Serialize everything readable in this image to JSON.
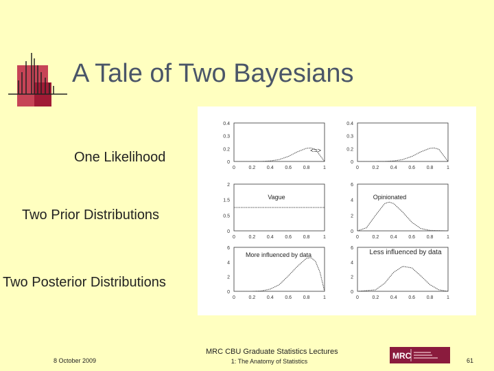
{
  "slide": {
    "title": "A Tale of Two Bayesians",
    "labels": {
      "likelihood": "One Likelihood",
      "priors": "Two Prior Distributions",
      "posteriors": "Two Posterior Distributions"
    }
  },
  "footer": {
    "date": "8 October 2009",
    "line1": "MRC CBU Graduate Statistics Lectures",
    "line2": "1: The Anatomy of Statistics",
    "page": "61",
    "logo_text": "MRC"
  },
  "colors": {
    "background": "#FFFFC0",
    "title": "#4a5568",
    "accent": "#c0304a",
    "logo": "#8a1b3d"
  },
  "chart_data": [
    {
      "type": "line",
      "panel": "likelihood-left",
      "annotation": "<=>",
      "x": [
        0,
        0.1,
        0.2,
        0.3,
        0.4,
        0.5,
        0.6,
        0.7,
        0.8,
        0.85,
        0.9,
        1
      ],
      "values": [
        0,
        0,
        0,
        0.001,
        0.006,
        0.02,
        0.052,
        0.1,
        0.137,
        0.14,
        0.126,
        0
      ],
      "ylim": [
        0,
        0.4
      ],
      "y_ticks": [
        "0",
        "0.2",
        "0.3",
        "0.4"
      ],
      "x_ticks": [
        "0",
        "0.2",
        "0.4",
        "0.6",
        "0.8",
        "1"
      ]
    },
    {
      "type": "line",
      "panel": "likelihood-right",
      "x": [
        0,
        0.1,
        0.2,
        0.3,
        0.4,
        0.5,
        0.6,
        0.7,
        0.8,
        0.85,
        0.9,
        1
      ],
      "values": [
        0,
        0,
        0,
        0.001,
        0.006,
        0.02,
        0.052,
        0.1,
        0.137,
        0.14,
        0.126,
        0
      ],
      "ylim": [
        0,
        0.4
      ],
      "y_ticks": [
        "0",
        "0.2",
        "0.3",
        "0.4"
      ],
      "x_ticks": [
        "0",
        "0.2",
        "0.4",
        "0.6",
        "0.8",
        "1"
      ]
    },
    {
      "type": "line",
      "panel": "prior-vague",
      "annotation": "Vague",
      "x": [
        0,
        1
      ],
      "values": [
        1,
        1
      ],
      "ylim": [
        0,
        2
      ],
      "y_ticks": [
        "0",
        "0.5",
        "1.5",
        "2"
      ],
      "x_ticks": [
        "0",
        "0.2",
        "0.4",
        "0.6",
        "0.8",
        "1"
      ]
    },
    {
      "type": "line",
      "panel": "prior-opinionated",
      "annotation": "Opinionated",
      "x": [
        0,
        0.1,
        0.2,
        0.3,
        0.35,
        0.4,
        0.5,
        0.6,
        0.7,
        0.8,
        1
      ],
      "values": [
        0,
        0.4,
        2.0,
        3.5,
        3.7,
        3.5,
        2.4,
        1.1,
        0.3,
        0.05,
        0
      ],
      "ylim": [
        0,
        6
      ],
      "y_ticks": [
        "0",
        "2",
        "4",
        "6"
      ],
      "x_ticks": [
        "0",
        "0.2",
        "0.4",
        "0.6",
        "0.8",
        "1"
      ]
    },
    {
      "type": "line",
      "panel": "posterior-vague",
      "annotation": "More influenced by data",
      "x": [
        0,
        0.2,
        0.3,
        0.4,
        0.5,
        0.6,
        0.7,
        0.8,
        0.85,
        0.9,
        0.95,
        1
      ],
      "values": [
        0,
        0,
        0.05,
        0.3,
        0.9,
        2.1,
        3.4,
        4.5,
        4.6,
        4.1,
        2.6,
        0
      ],
      "ylim": [
        0,
        6
      ],
      "y_ticks": [
        "0",
        "2",
        "4",
        "6"
      ],
      "x_ticks": [
        "0",
        "0.2",
        "0.4",
        "0.6",
        "0.8",
        "1"
      ]
    },
    {
      "type": "line",
      "panel": "posterior-opinionated",
      "annotation": "Less influenced by data",
      "x": [
        0,
        0.2,
        0.3,
        0.4,
        0.5,
        0.6,
        0.7,
        0.8,
        0.9,
        1
      ],
      "values": [
        0,
        0.2,
        1.1,
        2.6,
        3.4,
        3.2,
        2.1,
        0.9,
        0.2,
        0
      ],
      "ylim": [
        0,
        6
      ],
      "y_ticks": [
        "0",
        "2",
        "4",
        "6"
      ],
      "x_ticks": [
        "0",
        "0.2",
        "0.4",
        "0.6",
        "0.8",
        "1"
      ]
    }
  ]
}
